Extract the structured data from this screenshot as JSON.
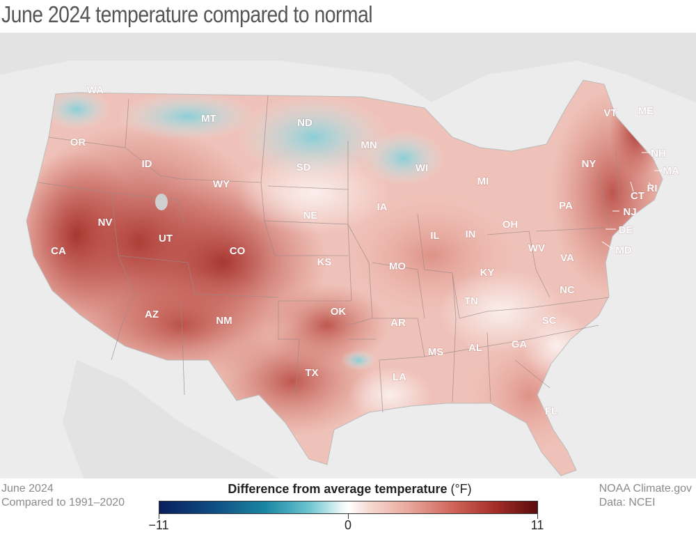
{
  "title": "June 2024 temperature compared to normal",
  "footer_left": {
    "line1": "June 2024",
    "line2": "Compared to 1991–2020"
  },
  "footer_right": {
    "line1": "NOAA Climate.gov",
    "line2": "Data: NCEI"
  },
  "legend": {
    "title_bold": "Difference from average temperature",
    "unit": " (°F)",
    "min_label": "−11",
    "mid_label": "0",
    "max_label": "11",
    "range": [
      -11,
      11
    ]
  },
  "colors": {
    "cold": "#0a1f5c",
    "neutral": "#ffffff",
    "warm": "#5a0c0c"
  },
  "states": {
    "WA": "WA",
    "OR": "OR",
    "CA": "CA",
    "ID": "ID",
    "NV": "NV",
    "MT": "MT",
    "WY": "WY",
    "UT": "UT",
    "AZ": "AZ",
    "CO": "CO",
    "NM": "NM",
    "ND": "ND",
    "SD": "SD",
    "NE": "NE",
    "KS": "KS",
    "OK": "OK",
    "TX": "TX",
    "MN": "MN",
    "IA": "IA",
    "MO": "MO",
    "AR": "AR",
    "LA": "LA",
    "WI": "WI",
    "IL": "IL",
    "MS": "MS",
    "MI": "MI",
    "IN": "IN",
    "KY": "KY",
    "TN": "TN",
    "AL": "AL",
    "OH": "OH",
    "WV": "WV",
    "GA": "GA",
    "FL": "FL",
    "SC": "SC",
    "NC": "NC",
    "VA": "VA",
    "PA": "PA",
    "NY": "NY",
    "VT": "VT",
    "ME": "ME",
    "NH": "NH",
    "MA": "MA",
    "RI": "RI",
    "CT": "CT",
    "NJ": "NJ",
    "DE": "DE",
    "MD": "MD"
  }
}
